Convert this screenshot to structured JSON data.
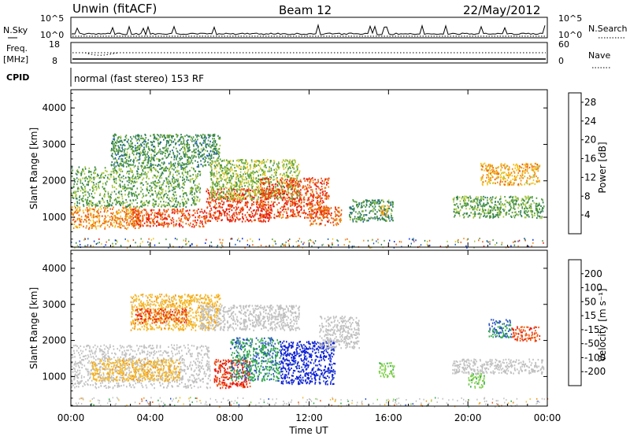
{
  "header": {
    "station": "Unwin (fitACF)",
    "beam": "Beam 12",
    "date": "22/May/2012"
  },
  "top_panels": {
    "nsky_label": "N.Sky",
    "nsky_ticks": [
      "10^5",
      "10^0"
    ],
    "nsearch_label": "N.Search",
    "nsearch_ticks": [
      "10^5",
      "10^0"
    ],
    "freq_label": "Freq.",
    "freq_unit": "[MHz]",
    "freq_ticks": [
      "18",
      "8"
    ],
    "nave_label": "Nave",
    "nave_ticks": [
      "60",
      "0"
    ],
    "cpid_label": "CPID",
    "cpid_text": "normal (fast stereo) 153 RF"
  },
  "colors": {
    "power": [
      "#0a2fe6",
      "#1a5ab8",
      "#2e7d5a",
      "#4f9a3c",
      "#a8c83c",
      "#f2c21b",
      "#f08a12",
      "#ee5a10",
      "#e61a10"
    ],
    "velocity": [
      "#e61a10",
      "#ef5a12",
      "#f39616",
      "#f5b92a",
      "#c8c8c8",
      "#7fd04a",
      "#2ea84a",
      "#2a52c8",
      "#0d1fd6"
    ],
    "ground_scatter": "#c0c0c0"
  },
  "chart_data": [
    {
      "type": "heatmap",
      "title": "Power",
      "xlabel": "Time UT",
      "ylabel": "Slant Range [km]",
      "xlim": [
        "00:00",
        "24:00"
      ],
      "ylim": [
        180,
        4500
      ],
      "x_ticks": [
        "00:00",
        "04:00",
        "08:00",
        "12:00",
        "16:00",
        "20:00",
        "00:00"
      ],
      "y_ticks": [
        1000,
        2000,
        3000,
        4000
      ],
      "colorbar": {
        "label": "Power [dB]",
        "ticks": [
          4,
          8,
          12,
          16,
          20,
          24,
          28
        ],
        "range": [
          0,
          30
        ]
      },
      "regions": [
        {
          "t": [
            0.0,
            3.5
          ],
          "r": [
            700,
            1300
          ],
          "value": 22
        },
        {
          "t": [
            0.0,
            6.5
          ],
          "r": [
            1300,
            2400
          ],
          "value": 12
        },
        {
          "t": [
            2.0,
            7.5
          ],
          "r": [
            2400,
            3300
          ],
          "value": 10
        },
        {
          "t": [
            3.0,
            6.8
          ],
          "r": [
            750,
            1250
          ],
          "value": 26
        },
        {
          "t": [
            6.8,
            10.0
          ],
          "r": [
            900,
            1800
          ],
          "value": 27
        },
        {
          "t": [
            7.0,
            11.5
          ],
          "r": [
            1500,
            2600
          ],
          "value": 14
        },
        {
          "t": [
            9.5,
            13.0
          ],
          "r": [
            1000,
            2100
          ],
          "value": 26
        },
        {
          "t": [
            12.0,
            13.6
          ],
          "r": [
            800,
            1300
          ],
          "value": 24
        },
        {
          "t": [
            14.0,
            16.2
          ],
          "r": [
            900,
            1500
          ],
          "value": 10
        },
        {
          "t": [
            15.6,
            16.0
          ],
          "r": [
            1050,
            1350
          ],
          "value": 20
        },
        {
          "t": [
            19.2,
            23.8
          ],
          "r": [
            1000,
            1600
          ],
          "value": 12
        },
        {
          "t": [
            20.6,
            23.6
          ],
          "r": [
            1900,
            2500
          ],
          "value": 20
        }
      ]
    },
    {
      "type": "heatmap",
      "title": "Velocity",
      "xlabel": "Time UT",
      "ylabel": "Slant Range [km]",
      "xlim": [
        "00:00",
        "24:00"
      ],
      "ylim": [
        180,
        4500
      ],
      "x_ticks": [
        "00:00",
        "04:00",
        "08:00",
        "12:00",
        "16:00",
        "20:00",
        "00:00"
      ],
      "y_ticks": [
        1000,
        2000,
        3000,
        4000
      ],
      "colorbar": {
        "label": "Velocity [m s⁻¹]",
        "ticks": [
          -200,
          -100,
          -50,
          -15,
          15,
          50,
          100,
          200
        ],
        "range": [
          -250,
          250
        ]
      },
      "regions": [
        {
          "t": [
            0.0,
            7.0
          ],
          "r": [
            700,
            1900
          ],
          "value": "ground"
        },
        {
          "t": [
            1.0,
            5.5
          ],
          "r": [
            900,
            1500
          ],
          "value": -60
        },
        {
          "t": [
            3.0,
            7.5
          ],
          "r": [
            2300,
            3300
          ],
          "value": -60
        },
        {
          "t": [
            3.2,
            5.8
          ],
          "r": [
            2500,
            2900
          ],
          "value": -180
        },
        {
          "t": [
            6.5,
            11.5
          ],
          "r": [
            2300,
            3000
          ],
          "value": "ground"
        },
        {
          "t": [
            7.2,
            9.0
          ],
          "r": [
            700,
            1500
          ],
          "value": -200
        },
        {
          "t": [
            8.0,
            10.5
          ],
          "r": [
            900,
            2100
          ],
          "value": 130
        },
        {
          "t": [
            10.5,
            13.3
          ],
          "r": [
            800,
            2000
          ],
          "value": 220
        },
        {
          "t": [
            12.5,
            14.5
          ],
          "r": [
            1800,
            2700
          ],
          "value": "ground"
        },
        {
          "t": [
            15.5,
            16.3
          ],
          "r": [
            1000,
            1400
          ],
          "value": 60
        },
        {
          "t": [
            19.2,
            23.8
          ],
          "r": [
            1100,
            1500
          ],
          "value": "ground"
        },
        {
          "t": [
            20.0,
            20.8
          ],
          "r": [
            700,
            1100
          ],
          "value": 60
        },
        {
          "t": [
            21.0,
            22.2
          ],
          "r": [
            2100,
            2600
          ],
          "value": 150
        },
        {
          "t": [
            22.2,
            23.6
          ],
          "r": [
            2000,
            2400
          ],
          "value": -180
        }
      ]
    }
  ]
}
